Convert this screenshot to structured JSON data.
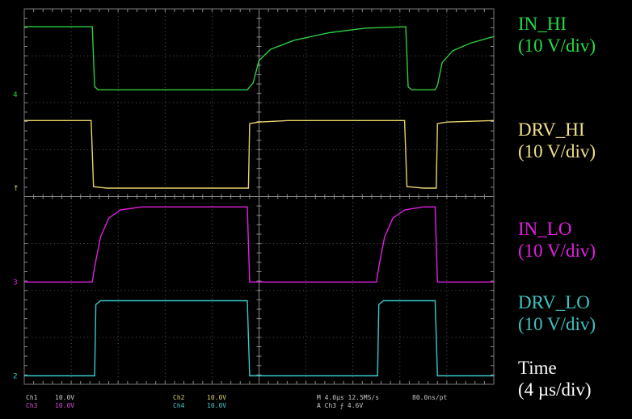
{
  "chart_data": {
    "type": "line",
    "title": "",
    "xlabel": "Time",
    "x_scale": "4 µs/div",
    "x_divisions": 10,
    "y_divisions": 8,
    "grid": true,
    "x_range_us": [
      0,
      40
    ],
    "series": [
      {
        "name": "IN_HI",
        "scale": "10 V/div",
        "color": "#2ecc40",
        "row": 0,
        "points": [
          [
            0,
            0.9
          ],
          [
            5.8,
            0.9
          ],
          [
            6.0,
            0.1
          ],
          [
            6.3,
            0.06
          ],
          [
            19.0,
            0.06
          ],
          [
            19.5,
            0.15
          ],
          [
            20,
            0.45
          ],
          [
            21,
            0.6
          ],
          [
            23,
            0.72
          ],
          [
            26,
            0.82
          ],
          [
            29,
            0.88
          ],
          [
            32.5,
            0.9
          ],
          [
            32.7,
            0.1
          ],
          [
            33.0,
            0.06
          ],
          [
            35.0,
            0.06
          ],
          [
            35.2,
            0.12
          ],
          [
            35.6,
            0.42
          ],
          [
            36.5,
            0.58
          ],
          [
            38,
            0.68
          ],
          [
            40,
            0.77
          ]
        ]
      },
      {
        "name": "DRV_HI",
        "scale": "10 V/div",
        "color": "#e6d36b",
        "row": 1,
        "points": [
          [
            0,
            0.9
          ],
          [
            5.7,
            0.9
          ],
          [
            5.9,
            0.02
          ],
          [
            7,
            0.0
          ],
          [
            19.1,
            0.0
          ],
          [
            19.2,
            0.86
          ],
          [
            20,
            0.88
          ],
          [
            22.5,
            0.9
          ],
          [
            32.4,
            0.9
          ],
          [
            32.6,
            0.02
          ],
          [
            34,
            0.0
          ],
          [
            35.1,
            0.0
          ],
          [
            35.2,
            0.86
          ],
          [
            36,
            0.88
          ],
          [
            40,
            0.9
          ]
        ]
      },
      {
        "name": "IN_LO",
        "scale": "10 V/div",
        "color": "#e020e0",
        "row": 2,
        "points": [
          [
            0,
            0.0
          ],
          [
            5.8,
            0.0
          ],
          [
            6.0,
            0.2
          ],
          [
            6.5,
            0.6
          ],
          [
            7.2,
            0.85
          ],
          [
            8.2,
            0.96
          ],
          [
            10,
            1.0
          ],
          [
            19.0,
            1.0
          ],
          [
            19.2,
            0.0
          ],
          [
            30.0,
            0.0
          ],
          [
            30.2,
            0.2
          ],
          [
            30.7,
            0.6
          ],
          [
            31.4,
            0.85
          ],
          [
            32.4,
            0.96
          ],
          [
            34,
            1.0
          ],
          [
            35.0,
            1.0
          ],
          [
            35.2,
            0.0
          ],
          [
            40,
            0.0
          ]
        ]
      },
      {
        "name": "DRV_LO",
        "scale": "10 V/div",
        "color": "#36c8c8",
        "row": 3,
        "points": [
          [
            0,
            0.0
          ],
          [
            6.0,
            0.0
          ],
          [
            6.1,
            0.95
          ],
          [
            6.5,
            1.0
          ],
          [
            19.0,
            1.0
          ],
          [
            19.2,
            0.0
          ],
          [
            30.1,
            0.0
          ],
          [
            30.2,
            0.95
          ],
          [
            30.6,
            1.0
          ],
          [
            35.0,
            1.0
          ],
          [
            35.2,
            0.0
          ],
          [
            40,
            0.0
          ]
        ]
      }
    ]
  },
  "status": {
    "ch1": "Ch1",
    "ch1_scale": "10.0V",
    "ch2": "Ch2",
    "ch2_scale": "10.0V",
    "ch3": "Ch3",
    "ch3_scale": "10.0V",
    "ch4": "Ch4",
    "ch4_scale": "10.0V",
    "timebase": "M 4.0µs 12.5MS/s",
    "trigger": "A  Ch3  ⨍  4.6V",
    "record": "80.0ns/pt"
  },
  "markers": {
    "ch1": "4",
    "ch2": "↑",
    "ch3": "3",
    "ch4": "2"
  },
  "labels": [
    {
      "name": "IN_HI",
      "scale": "(10 V/div)",
      "color": "#22dd44"
    },
    {
      "name": "DRV_HI",
      "scale": "(10 V/div)",
      "color": "#f0e08a"
    },
    {
      "name": "IN_LO",
      "scale": "(10 V/div)",
      "color": "#e020e0"
    },
    {
      "name": "DRV_LO",
      "scale": "(10 V/div)",
      "color": "#3ec3c3"
    },
    {
      "name": "Time",
      "scale": "(4 µs/div)",
      "color": "#ffffff"
    }
  ]
}
